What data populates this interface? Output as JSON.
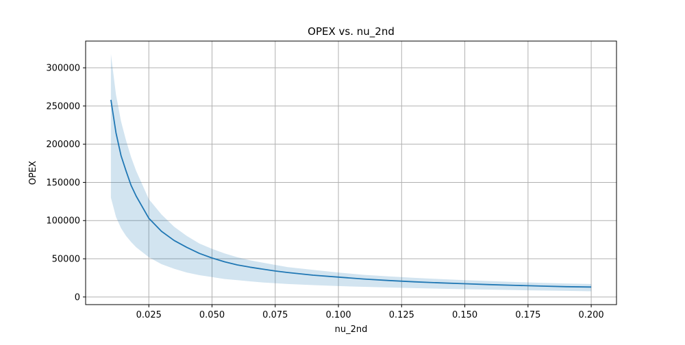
{
  "chart_data": {
    "type": "line",
    "title": "OPEX vs. nu_2nd",
    "xlabel": "nu_2nd",
    "ylabel": "OPEX",
    "xlim": [
      0.0,
      0.21
    ],
    "ylim": [
      -10000,
      335000
    ],
    "grid": true,
    "x_ticks": [
      0.025,
      0.05,
      0.075,
      0.1,
      0.125,
      0.15,
      0.175,
      0.2
    ],
    "x_tick_labels": [
      "0.025",
      "0.050",
      "0.075",
      "0.100",
      "0.125",
      "0.150",
      "0.175",
      "0.200"
    ],
    "y_ticks": [
      0,
      50000,
      100000,
      150000,
      200000,
      250000,
      300000
    ],
    "y_tick_labels": [
      "0",
      "50000",
      "100000",
      "150000",
      "200000",
      "250000",
      "300000"
    ],
    "colors": {
      "line": "#1f77b4",
      "band": "#1f77b4",
      "grid": "#b0b0b0"
    },
    "series": [
      {
        "x": [
          0.01,
          0.012,
          0.014,
          0.016,
          0.018,
          0.02,
          0.025,
          0.03,
          0.035,
          0.04,
          0.045,
          0.05,
          0.055,
          0.06,
          0.065,
          0.07,
          0.075,
          0.08,
          0.09,
          0.1,
          0.11,
          0.12,
          0.13,
          0.14,
          0.15,
          0.16,
          0.17,
          0.18,
          0.19,
          0.2
        ],
        "values": [
          258000,
          215000,
          185000,
          165000,
          146000,
          132000,
          103000,
          86000,
          74000,
          65000,
          57000,
          51000,
          46000,
          42000,
          39000,
          36500,
          34000,
          32000,
          28500,
          26000,
          23500,
          21500,
          19800,
          18500,
          17300,
          16200,
          15200,
          14300,
          13500,
          13000
        ],
        "band_upper": [
          318000,
          265000,
          230000,
          205000,
          183000,
          165000,
          128000,
          108000,
          92000,
          80000,
          70000,
          63000,
          57000,
          52000,
          48000,
          45000,
          42000,
          39000,
          35500,
          32000,
          29000,
          27000,
          25000,
          23500,
          22000,
          20800,
          19600,
          18600,
          17700,
          17000
        ],
        "band_lower": [
          130000,
          105000,
          90000,
          80000,
          72000,
          65000,
          52000,
          43000,
          37000,
          32000,
          28500,
          26000,
          23500,
          22000,
          20500,
          19000,
          18000,
          17000,
          15500,
          14300,
          13300,
          12400,
          11600,
          10900,
          10200,
          9600,
          9000,
          8500,
          8000,
          7500
        ]
      }
    ]
  }
}
